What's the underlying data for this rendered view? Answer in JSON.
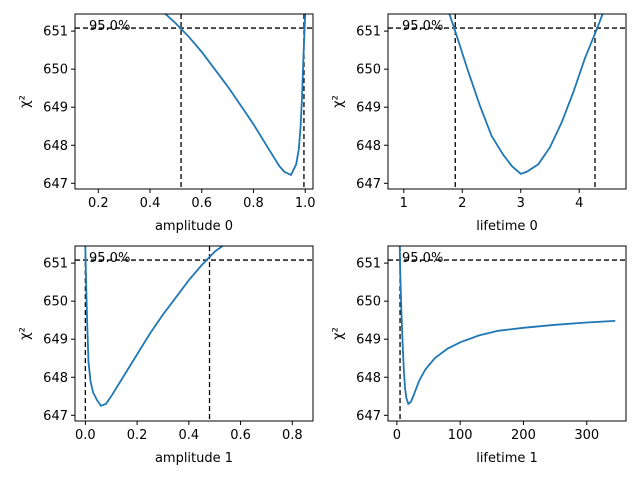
{
  "chart_data": [
    {
      "type": "line",
      "xlabel": "amplitude 0",
      "ylabel": "χ²",
      "xlim": [
        0.11,
        1.03
      ],
      "ylim": [
        646.85,
        651.45
      ],
      "xticks": [
        0.2,
        0.4,
        0.6,
        0.8,
        1.0
      ],
      "xtick_labels": [
        "0.2",
        "0.4",
        "0.6",
        "0.8",
        "1.0"
      ],
      "yticks": [
        647,
        648,
        649,
        650,
        651
      ],
      "ytick_labels": [
        "647",
        "648",
        "649",
        "650",
        "651"
      ],
      "confidence_label": "95.0%",
      "threshold": 651.08,
      "vlines": [
        0.52,
        0.995
      ],
      "series": [
        {
          "x": [
            0.46,
            0.5,
            0.55,
            0.6,
            0.65,
            0.7,
            0.75,
            0.8,
            0.85,
            0.9,
            0.92,
            0.945,
            0.965,
            0.975,
            0.982,
            0.988,
            0.993,
            0.997,
            1.0
          ],
          "y": [
            651.45,
            651.2,
            650.85,
            650.45,
            650.0,
            649.55,
            649.05,
            648.55,
            648.0,
            647.45,
            647.3,
            647.22,
            647.5,
            647.9,
            648.5,
            649.3,
            650.3,
            651.0,
            651.45
          ]
        }
      ]
    },
    {
      "type": "line",
      "xlabel": "lifetime 0",
      "ylabel": "χ²",
      "xlim": [
        0.73,
        4.8
      ],
      "ylim": [
        646.85,
        651.45
      ],
      "xticks": [
        1,
        2,
        3,
        4
      ],
      "xtick_labels": [
        "1",
        "2",
        "3",
        "4"
      ],
      "yticks": [
        647,
        648,
        649,
        650,
        651
      ],
      "ytick_labels": [
        "647",
        "648",
        "649",
        "650",
        "651"
      ],
      "confidence_label": "95.0%",
      "threshold": 651.08,
      "vlines": [
        1.88,
        4.27
      ],
      "series": [
        {
          "x": [
            1.78,
            1.9,
            2.1,
            2.3,
            2.5,
            2.7,
            2.85,
            3.0,
            3.1,
            3.3,
            3.5,
            3.7,
            3.9,
            4.1,
            4.3,
            4.4
          ],
          "y": [
            651.45,
            650.9,
            649.95,
            649.05,
            648.25,
            647.75,
            647.45,
            647.25,
            647.3,
            647.5,
            647.95,
            648.6,
            649.4,
            650.3,
            651.05,
            651.45
          ]
        }
      ]
    },
    {
      "type": "line",
      "xlabel": "amplitude 1",
      "ylabel": "χ²",
      "xlim": [
        -0.04,
        0.88
      ],
      "ylim": [
        646.85,
        651.45
      ],
      "xticks": [
        0.0,
        0.2,
        0.4,
        0.6,
        0.8
      ],
      "xtick_labels": [
        "0.0",
        "0.2",
        "0.4",
        "0.6",
        "0.8"
      ],
      "yticks": [
        647,
        648,
        649,
        650,
        651
      ],
      "ytick_labels": [
        "647",
        "648",
        "649",
        "650",
        "651"
      ],
      "confidence_label": "95.0%",
      "threshold": 651.08,
      "vlines": [
        0.0,
        0.48
      ],
      "series": [
        {
          "x": [
            0.0,
            0.003,
            0.007,
            0.012,
            0.02,
            0.03,
            0.045,
            0.06,
            0.08,
            0.1,
            0.15,
            0.2,
            0.25,
            0.3,
            0.35,
            0.4,
            0.45,
            0.5,
            0.53
          ],
          "y": [
            651.45,
            650.5,
            649.4,
            648.4,
            647.9,
            647.6,
            647.4,
            647.25,
            647.3,
            647.5,
            648.05,
            648.6,
            649.15,
            649.65,
            650.1,
            650.55,
            650.95,
            651.3,
            651.45
          ]
        }
      ]
    },
    {
      "type": "line",
      "xlabel": "lifetime 1",
      "ylabel": "χ²",
      "xlim": [
        -14,
        362
      ],
      "ylim": [
        646.85,
        651.45
      ],
      "xticks": [
        0,
        100,
        200,
        300
      ],
      "xtick_labels": [
        "0",
        "100",
        "200",
        "300"
      ],
      "yticks": [
        647,
        648,
        649,
        650,
        651
      ],
      "ytick_labels": [
        "647",
        "648",
        "649",
        "650",
        "651"
      ],
      "confidence_label": "95.0%",
      "threshold": 651.08,
      "vlines": [
        5.0
      ],
      "series": [
        {
          "x": [
            4.5,
            5.5,
            7,
            9,
            11,
            13,
            15,
            18,
            22,
            27,
            35,
            45,
            60,
            80,
            100,
            130,
            160,
            200,
            250,
            300,
            345
          ],
          "y": [
            651.45,
            650.7,
            649.8,
            648.9,
            648.2,
            647.7,
            647.45,
            647.3,
            647.35,
            647.55,
            647.9,
            648.2,
            648.5,
            648.75,
            648.92,
            649.1,
            649.22,
            649.3,
            649.38,
            649.44,
            649.48
          ]
        }
      ]
    }
  ]
}
